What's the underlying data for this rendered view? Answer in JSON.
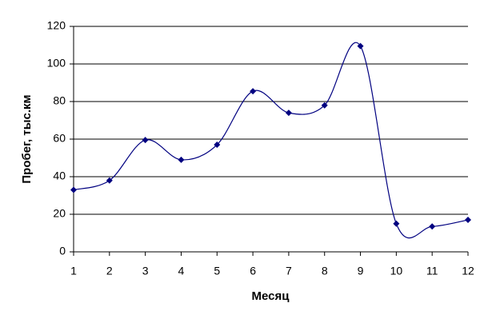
{
  "chart_data": {
    "type": "line",
    "xlabel": "Месяц",
    "ylabel": "Пробег, тыс.км",
    "x": [
      1,
      2,
      3,
      4,
      5,
      6,
      7,
      8,
      9,
      10,
      11,
      12
    ],
    "series": [
      {
        "name": "Пробег",
        "color": "#000080",
        "values": [
          33,
          38,
          59.5,
          49,
          57,
          85.5,
          74,
          78,
          109.5,
          15,
          13.5,
          17
        ]
      }
    ],
    "xlim": [
      1,
      12
    ],
    "xticks": [
      1,
      2,
      3,
      4,
      5,
      6,
      7,
      8,
      9,
      10,
      11,
      12
    ],
    "ylim": [
      0,
      120
    ],
    "yticks": [
      0,
      20,
      40,
      60,
      80,
      100,
      120
    ],
    "grid": true,
    "smooth": true
  }
}
